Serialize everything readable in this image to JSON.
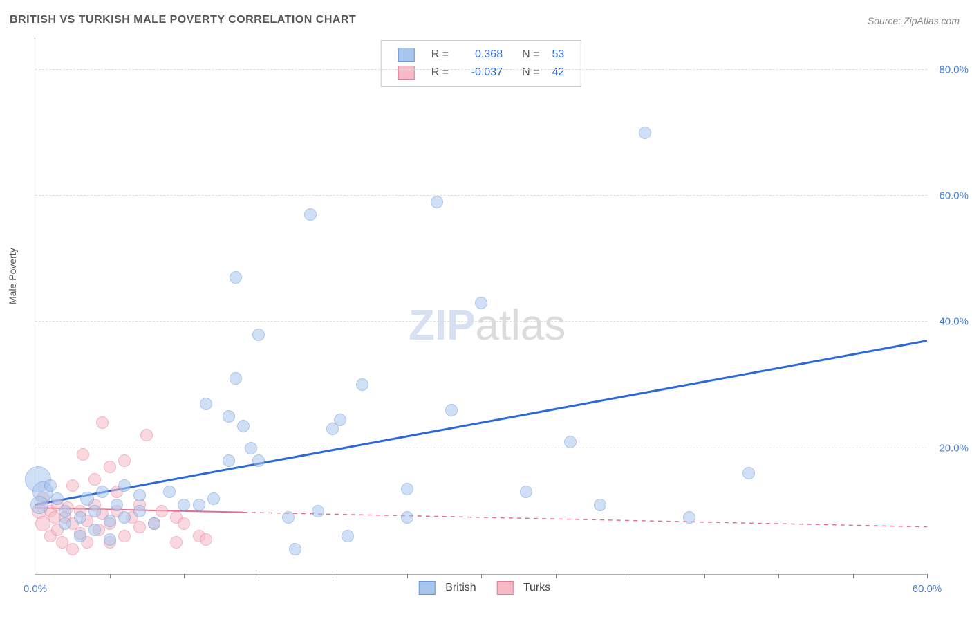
{
  "title": "BRITISH VS TURKISH MALE POVERTY CORRELATION CHART",
  "source": "Source: ZipAtlas.com",
  "ylabel": "Male Poverty",
  "watermark_zip": "ZIP",
  "watermark_atlas": "atlas",
  "chart": {
    "type": "scatter",
    "xlim": [
      0,
      60
    ],
    "ylim": [
      0,
      85
    ],
    "xtick_step": 5,
    "ytick_step": 20,
    "xtick_labels": {
      "0": "0.0%",
      "60": "60.0%"
    },
    "ytick_labels": {
      "20": "20.0%",
      "40": "40.0%",
      "60": "60.0%",
      "80": "80.0%"
    },
    "background_color": "#ffffff",
    "grid_color": "#dddddd",
    "axis_color": "#aaaaaa",
    "series": [
      {
        "name": "British",
        "fill": "#a8c5ed",
        "stroke": "#6a99d9",
        "fill_opacity": 0.55,
        "r_label": "R =",
        "r_value": "0.368",
        "n_label": "N =",
        "n_value": "53",
        "trend": {
          "x1": 0,
          "y1": 11,
          "x2": 60,
          "y2": 37,
          "solid_until_x": 60,
          "color": "#2b68d8",
          "width": 3
        },
        "points": [
          {
            "x": 0.2,
            "y": 15,
            "r": 18
          },
          {
            "x": 0.5,
            "y": 13,
            "r": 14
          },
          {
            "x": 0.3,
            "y": 11,
            "r": 12
          },
          {
            "x": 1,
            "y": 14,
            "r": 8
          },
          {
            "x": 1.5,
            "y": 12,
            "r": 8
          },
          {
            "x": 2,
            "y": 8,
            "r": 8
          },
          {
            "x": 2,
            "y": 10,
            "r": 8
          },
          {
            "x": 3,
            "y": 6,
            "r": 8
          },
          {
            "x": 3,
            "y": 9,
            "r": 8
          },
          {
            "x": 3.5,
            "y": 12,
            "r": 9
          },
          {
            "x": 4,
            "y": 7,
            "r": 8
          },
          {
            "x": 4,
            "y": 10,
            "r": 8
          },
          {
            "x": 4.5,
            "y": 13,
            "r": 8
          },
          {
            "x": 5,
            "y": 5.5,
            "r": 8
          },
          {
            "x": 5,
            "y": 8.5,
            "r": 8
          },
          {
            "x": 5.5,
            "y": 11,
            "r": 8
          },
          {
            "x": 6,
            "y": 9,
            "r": 8
          },
          {
            "x": 6,
            "y": 14,
            "r": 8
          },
          {
            "x": 7,
            "y": 10,
            "r": 8
          },
          {
            "x": 7,
            "y": 12.5,
            "r": 8
          },
          {
            "x": 8,
            "y": 8,
            "r": 8
          },
          {
            "x": 9,
            "y": 13,
            "r": 8
          },
          {
            "x": 10,
            "y": 11,
            "r": 8
          },
          {
            "x": 11,
            "y": 11,
            "r": 8
          },
          {
            "x": 11.5,
            "y": 27,
            "r": 8
          },
          {
            "x": 12,
            "y": 12,
            "r": 8
          },
          {
            "x": 13,
            "y": 18,
            "r": 8
          },
          {
            "x": 13,
            "y": 25,
            "r": 8
          },
          {
            "x": 13.5,
            "y": 31,
            "r": 8
          },
          {
            "x": 13.5,
            "y": 47,
            "r": 8
          },
          {
            "x": 14,
            "y": 23.5,
            "r": 8
          },
          {
            "x": 14.5,
            "y": 20,
            "r": 8
          },
          {
            "x": 15,
            "y": 18,
            "r": 8
          },
          {
            "x": 15,
            "y": 38,
            "r": 8
          },
          {
            "x": 17,
            "y": 9,
            "r": 8
          },
          {
            "x": 17.5,
            "y": 4,
            "r": 8
          },
          {
            "x": 18.5,
            "y": 57,
            "r": 8
          },
          {
            "x": 19,
            "y": 10,
            "r": 8
          },
          {
            "x": 20,
            "y": 23,
            "r": 8
          },
          {
            "x": 20.5,
            "y": 24.5,
            "r": 8
          },
          {
            "x": 21,
            "y": 6,
            "r": 8
          },
          {
            "x": 22,
            "y": 30,
            "r": 8
          },
          {
            "x": 25,
            "y": 9,
            "r": 8
          },
          {
            "x": 25,
            "y": 13.5,
            "r": 8
          },
          {
            "x": 27,
            "y": 59,
            "r": 8
          },
          {
            "x": 28,
            "y": 26,
            "r": 8
          },
          {
            "x": 30,
            "y": 43,
            "r": 8
          },
          {
            "x": 33,
            "y": 13,
            "r": 8
          },
          {
            "x": 36,
            "y": 21,
            "r": 8
          },
          {
            "x": 38,
            "y": 11,
            "r": 8
          },
          {
            "x": 41,
            "y": 70,
            "r": 8
          },
          {
            "x": 44,
            "y": 9,
            "r": 8
          },
          {
            "x": 48,
            "y": 16,
            "r": 8
          }
        ]
      },
      {
        "name": "Turks",
        "fill": "#f7b9c6",
        "stroke": "#e67b97",
        "fill_opacity": 0.55,
        "r_label": "R =",
        "r_value": "-0.037",
        "n_label": "N =",
        "n_value": "42",
        "trend": {
          "x1": 0,
          "y1": 10.5,
          "x2": 60,
          "y2": 7.5,
          "solid_until_x": 14,
          "color": "#e66b8a",
          "width": 2
        },
        "points": [
          {
            "x": 0.3,
            "y": 10,
            "r": 10
          },
          {
            "x": 0.5,
            "y": 8,
            "r": 10
          },
          {
            "x": 0.5,
            "y": 12,
            "r": 9
          },
          {
            "x": 1,
            "y": 6,
            "r": 8
          },
          {
            "x": 1,
            "y": 10,
            "r": 8
          },
          {
            "x": 1.3,
            "y": 9,
            "r": 8
          },
          {
            "x": 1.5,
            "y": 7,
            "r": 8
          },
          {
            "x": 1.5,
            "y": 11,
            "r": 8
          },
          {
            "x": 1.8,
            "y": 5,
            "r": 8
          },
          {
            "x": 2,
            "y": 9,
            "r": 8
          },
          {
            "x": 2.2,
            "y": 10.5,
            "r": 8
          },
          {
            "x": 2.5,
            "y": 4,
            "r": 8
          },
          {
            "x": 2.5,
            "y": 8,
            "r": 8
          },
          {
            "x": 2.5,
            "y": 14,
            "r": 8
          },
          {
            "x": 3,
            "y": 6.5,
            "r": 8
          },
          {
            "x": 3,
            "y": 10,
            "r": 8
          },
          {
            "x": 3.2,
            "y": 19,
            "r": 8
          },
          {
            "x": 3.5,
            "y": 5,
            "r": 8
          },
          {
            "x": 3.5,
            "y": 8.5,
            "r": 8
          },
          {
            "x": 4,
            "y": 11,
            "r": 8
          },
          {
            "x": 4,
            "y": 15,
            "r": 8
          },
          {
            "x": 4.3,
            "y": 7,
            "r": 8
          },
          {
            "x": 4.5,
            "y": 9.5,
            "r": 8
          },
          {
            "x": 4.5,
            "y": 24,
            "r": 8
          },
          {
            "x": 5,
            "y": 5,
            "r": 8
          },
          {
            "x": 5,
            "y": 8,
            "r": 8
          },
          {
            "x": 5,
            "y": 17,
            "r": 8
          },
          {
            "x": 5.5,
            "y": 10,
            "r": 8
          },
          {
            "x": 5.5,
            "y": 13,
            "r": 8
          },
          {
            "x": 6,
            "y": 6,
            "r": 8
          },
          {
            "x": 6,
            "y": 18,
            "r": 8
          },
          {
            "x": 6.5,
            "y": 9,
            "r": 8
          },
          {
            "x": 7,
            "y": 7.5,
            "r": 8
          },
          {
            "x": 7,
            "y": 11,
            "r": 8
          },
          {
            "x": 7.5,
            "y": 22,
            "r": 8
          },
          {
            "x": 8,
            "y": 8,
            "r": 8
          },
          {
            "x": 8.5,
            "y": 10,
            "r": 8
          },
          {
            "x": 9.5,
            "y": 5,
            "r": 8
          },
          {
            "x": 9.5,
            "y": 9,
            "r": 8
          },
          {
            "x": 10,
            "y": 8,
            "r": 8
          },
          {
            "x": 11,
            "y": 6,
            "r": 8
          },
          {
            "x": 11.5,
            "y": 5.5,
            "r": 8
          }
        ]
      }
    ]
  },
  "legend_bottom": [
    {
      "label": "British",
      "fill": "#a8c5ed",
      "stroke": "#6a99d9"
    },
    {
      "label": "Turks",
      "fill": "#f7b9c6",
      "stroke": "#e67b97"
    }
  ]
}
